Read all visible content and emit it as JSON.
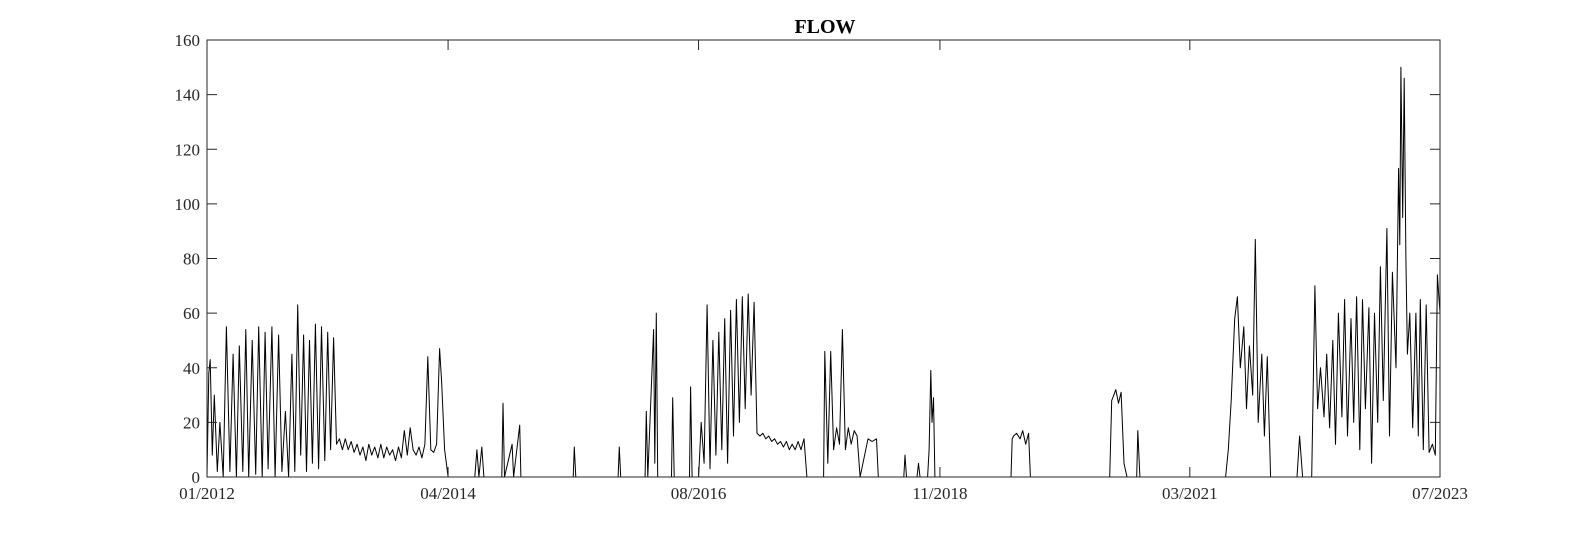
{
  "chart_data": {
    "type": "line",
    "title": "FLOW",
    "xlabel": "",
    "ylabel": "",
    "x_range": [
      "2012-01-01",
      "2023-07-01"
    ],
    "ylim": [
      0,
      160
    ],
    "yticks": [
      0,
      20,
      40,
      60,
      80,
      100,
      120,
      140,
      160
    ],
    "xticks": [
      {
        "date": "2012-01-01",
        "label": "01/2012"
      },
      {
        "date": "2014-04-01",
        "label": "04/2014"
      },
      {
        "date": "2016-08-01",
        "label": "08/2016"
      },
      {
        "date": "2018-11-01",
        "label": "11/2018"
      },
      {
        "date": "2021-03-01",
        "label": "03/2021"
      },
      {
        "date": "2023-07-01",
        "label": "07/2023"
      }
    ],
    "grid": false,
    "line_color": "#000000",
    "series": [
      {
        "values": [
          [
            "2012-01-01",
            0
          ],
          [
            "2012-01-07",
            38
          ],
          [
            "2012-01-12",
            43
          ],
          [
            "2012-01-19",
            8
          ],
          [
            "2012-01-26",
            30
          ],
          [
            "2012-02-05",
            2
          ],
          [
            "2012-02-14",
            20
          ],
          [
            "2012-02-25",
            0
          ],
          [
            "2012-03-07",
            55
          ],
          [
            "2012-03-19",
            2
          ],
          [
            "2012-03-30",
            45
          ],
          [
            "2012-04-10",
            0
          ],
          [
            "2012-04-20",
            48
          ],
          [
            "2012-05-02",
            2
          ],
          [
            "2012-05-12",
            54
          ],
          [
            "2012-05-22",
            0
          ],
          [
            "2012-06-03",
            50
          ],
          [
            "2012-06-15",
            1
          ],
          [
            "2012-06-25",
            55
          ],
          [
            "2012-07-07",
            0
          ],
          [
            "2012-07-17",
            53
          ],
          [
            "2012-07-27",
            3
          ],
          [
            "2012-08-09",
            55
          ],
          [
            "2012-08-20",
            0
          ],
          [
            "2012-09-01",
            52
          ],
          [
            "2012-09-12",
            2
          ],
          [
            "2012-09-24",
            24
          ],
          [
            "2012-10-05",
            0
          ],
          [
            "2012-10-16",
            45
          ],
          [
            "2012-10-26",
            2
          ],
          [
            "2012-11-05",
            63
          ],
          [
            "2012-11-15",
            8
          ],
          [
            "2012-11-25",
            52
          ],
          [
            "2012-12-05",
            2
          ],
          [
            "2012-12-15",
            50
          ],
          [
            "2012-12-25",
            5
          ],
          [
            "2013-01-04",
            56
          ],
          [
            "2013-01-15",
            3
          ],
          [
            "2013-01-25",
            55
          ],
          [
            "2013-02-05",
            6
          ],
          [
            "2013-02-15",
            53
          ],
          [
            "2013-02-25",
            10
          ],
          [
            "2013-03-07",
            51
          ],
          [
            "2013-03-17",
            12
          ],
          [
            "2013-03-27",
            14
          ],
          [
            "2013-04-06",
            10
          ],
          [
            "2013-04-16",
            14
          ],
          [
            "2013-04-26",
            10
          ],
          [
            "2013-05-06",
            13
          ],
          [
            "2013-05-16",
            9
          ],
          [
            "2013-05-26",
            12
          ],
          [
            "2013-06-05",
            8
          ],
          [
            "2013-06-15",
            11
          ],
          [
            "2013-06-25",
            6
          ],
          [
            "2013-07-05",
            12
          ],
          [
            "2013-07-15",
            8
          ],
          [
            "2013-07-25",
            11
          ],
          [
            "2013-08-05",
            7
          ],
          [
            "2013-08-15",
            12
          ],
          [
            "2013-08-25",
            7
          ],
          [
            "2013-09-04",
            11
          ],
          [
            "2013-09-14",
            8
          ],
          [
            "2013-09-24",
            10
          ],
          [
            "2013-10-04",
            6
          ],
          [
            "2013-10-14",
            11
          ],
          [
            "2013-10-24",
            7
          ],
          [
            "2013-11-03",
            17
          ],
          [
            "2013-11-13",
            8
          ],
          [
            "2013-11-23",
            18
          ],
          [
            "2013-12-03",
            10
          ],
          [
            "2013-12-13",
            8
          ],
          [
            "2013-12-23",
            11
          ],
          [
            "2014-01-02",
            7
          ],
          [
            "2014-01-12",
            12
          ],
          [
            "2014-01-22",
            44
          ],
          [
            "2014-02-01",
            10
          ],
          [
            "2014-02-11",
            9
          ],
          [
            "2014-02-21",
            12
          ],
          [
            "2014-03-03",
            47
          ],
          [
            "2014-03-10",
            35
          ],
          [
            "2014-03-20",
            10
          ],
          [
            "2014-04-01",
            0
          ],
          [
            "2014-07-01",
            0
          ],
          [
            "2014-07-08",
            10
          ],
          [
            "2014-07-15",
            0
          ],
          [
            "2014-07-25",
            11
          ],
          [
            "2014-08-01",
            0
          ],
          [
            "2014-10-01",
            0
          ],
          [
            "2014-10-05",
            27
          ],
          [
            "2014-10-10",
            0
          ],
          [
            "2014-11-05",
            12
          ],
          [
            "2014-11-10",
            0
          ],
          [
            "2014-12-01",
            19
          ],
          [
            "2014-12-05",
            0
          ],
          [
            "2015-06-01",
            0
          ],
          [
            "2015-06-05",
            11
          ],
          [
            "2015-06-10",
            0
          ],
          [
            "2015-11-01",
            0
          ],
          [
            "2015-11-05",
            11
          ],
          [
            "2015-11-10",
            0
          ],
          [
            "2016-02-01",
            0
          ],
          [
            "2016-02-05",
            24
          ],
          [
            "2016-02-10",
            0
          ],
          [
            "2016-03-01",
            54
          ],
          [
            "2016-03-05",
            5
          ],
          [
            "2016-03-10",
            60
          ],
          [
            "2016-03-15",
            0
          ],
          [
            "2016-05-01",
            0
          ],
          [
            "2016-05-05",
            29
          ],
          [
            "2016-05-10",
            0
          ],
          [
            "2016-07-01",
            0
          ],
          [
            "2016-07-05",
            33
          ],
          [
            "2016-07-10",
            0
          ],
          [
            "2016-08-01",
            0
          ],
          [
            "2016-08-10",
            20
          ],
          [
            "2016-08-20",
            5
          ],
          [
            "2016-08-30",
            63
          ],
          [
            "2016-09-09",
            3
          ],
          [
            "2016-09-19",
            50
          ],
          [
            "2016-09-29",
            8
          ],
          [
            "2016-10-09",
            53
          ],
          [
            "2016-10-19",
            10
          ],
          [
            "2016-10-29",
            58
          ],
          [
            "2016-11-08",
            5
          ],
          [
            "2016-11-18",
            61
          ],
          [
            "2016-11-28",
            15
          ],
          [
            "2016-12-08",
            65
          ],
          [
            "2016-12-18",
            20
          ],
          [
            "2016-12-28",
            66
          ],
          [
            "2017-01-07",
            25
          ],
          [
            "2017-01-17",
            67
          ],
          [
            "2017-01-27",
            30
          ],
          [
            "2017-02-06",
            64
          ],
          [
            "2017-02-16",
            16
          ],
          [
            "2017-02-26",
            15
          ],
          [
            "2017-03-08",
            16
          ],
          [
            "2017-03-18",
            14
          ],
          [
            "2017-03-28",
            15
          ],
          [
            "2017-04-07",
            13
          ],
          [
            "2017-04-17",
            14
          ],
          [
            "2017-04-27",
            12
          ],
          [
            "2017-05-07",
            13
          ],
          [
            "2017-05-17",
            11
          ],
          [
            "2017-05-27",
            13
          ],
          [
            "2017-06-06",
            10
          ],
          [
            "2017-06-16",
            12
          ],
          [
            "2017-06-26",
            10
          ],
          [
            "2017-07-06",
            13
          ],
          [
            "2017-07-16",
            10
          ],
          [
            "2017-07-26",
            14
          ],
          [
            "2017-08-05",
            0
          ],
          [
            "2017-10-01",
            0
          ],
          [
            "2017-10-05",
            46
          ],
          [
            "2017-10-15",
            5
          ],
          [
            "2017-10-25",
            46
          ],
          [
            "2017-11-04",
            10
          ],
          [
            "2017-11-14",
            18
          ],
          [
            "2017-11-24",
            12
          ],
          [
            "2017-12-04",
            54
          ],
          [
            "2017-12-14",
            10
          ],
          [
            "2017-12-24",
            18
          ],
          [
            "2018-01-03",
            12
          ],
          [
            "2018-01-13",
            17
          ],
          [
            "2018-01-23",
            15
          ],
          [
            "2018-02-02",
            0
          ],
          [
            "2018-03-01",
            14
          ],
          [
            "2018-03-15",
            13
          ],
          [
            "2018-03-30",
            14
          ],
          [
            "2018-04-05",
            0
          ],
          [
            "2018-07-01",
            0
          ],
          [
            "2018-07-05",
            8
          ],
          [
            "2018-07-10",
            0
          ],
          [
            "2018-08-15",
            0
          ],
          [
            "2018-08-20",
            5
          ],
          [
            "2018-08-25",
            0
          ],
          [
            "2018-09-20",
            0
          ],
          [
            "2018-09-25",
            10
          ],
          [
            "2018-10-01",
            39
          ],
          [
            "2018-10-05",
            20
          ],
          [
            "2018-10-10",
            29
          ],
          [
            "2018-10-15",
            0
          ],
          [
            "2019-07-01",
            0
          ],
          [
            "2019-07-05",
            14
          ],
          [
            "2019-07-10",
            15
          ],
          [
            "2019-07-20",
            16
          ],
          [
            "2019-08-01",
            14
          ],
          [
            "2019-08-10",
            17
          ],
          [
            "2019-08-20",
            12
          ],
          [
            "2019-08-30",
            16
          ],
          [
            "2019-09-05",
            0
          ],
          [
            "2020-06-01",
            0
          ],
          [
            "2020-06-08",
            28
          ],
          [
            "2020-06-15",
            30
          ],
          [
            "2020-06-22",
            32
          ],
          [
            "2020-07-01",
            27
          ],
          [
            "2020-07-10",
            31
          ],
          [
            "2020-07-20",
            5
          ],
          [
            "2020-07-30",
            0
          ],
          [
            "2020-09-01",
            0
          ],
          [
            "2020-09-05",
            17
          ],
          [
            "2020-09-12",
            0
          ],
          [
            "2021-07-01",
            0
          ],
          [
            "2021-07-10",
            10
          ],
          [
            "2021-07-20",
            28
          ],
          [
            "2021-08-01",
            58
          ],
          [
            "2021-08-10",
            66
          ],
          [
            "2021-08-20",
            40
          ],
          [
            "2021-09-01",
            55
          ],
          [
            "2021-09-10",
            25
          ],
          [
            "2021-09-20",
            48
          ],
          [
            "2021-10-01",
            30
          ],
          [
            "2021-10-10",
            87
          ],
          [
            "2021-10-20",
            20
          ],
          [
            "2021-11-01",
            45
          ],
          [
            "2021-11-10",
            15
          ],
          [
            "2021-11-20",
            44
          ],
          [
            "2021-12-01",
            0
          ],
          [
            "2022-03-01",
            0
          ],
          [
            "2022-03-10",
            15
          ],
          [
            "2022-03-20",
            0
          ],
          [
            "2022-04-20",
            0
          ],
          [
            "2022-05-01",
            70
          ],
          [
            "2022-05-10",
            25
          ],
          [
            "2022-05-20",
            40
          ],
          [
            "2022-06-01",
            22
          ],
          [
            "2022-06-10",
            45
          ],
          [
            "2022-06-20",
            18
          ],
          [
            "2022-07-01",
            50
          ],
          [
            "2022-07-10",
            12
          ],
          [
            "2022-07-20",
            60
          ],
          [
            "2022-08-01",
            22
          ],
          [
            "2022-08-10",
            65
          ],
          [
            "2022-08-20",
            15
          ],
          [
            "2022-09-01",
            58
          ],
          [
            "2022-09-10",
            20
          ],
          [
            "2022-09-20",
            66
          ],
          [
            "2022-10-01",
            10
          ],
          [
            "2022-10-10",
            65
          ],
          [
            "2022-10-20",
            25
          ],
          [
            "2022-11-01",
            62
          ],
          [
            "2022-11-10",
            5
          ],
          [
            "2022-11-20",
            60
          ],
          [
            "2022-12-01",
            20
          ],
          [
            "2022-12-10",
            77
          ],
          [
            "2022-12-20",
            28
          ],
          [
            "2023-01-01",
            91
          ],
          [
            "2023-01-10",
            15
          ],
          [
            "2023-01-20",
            75
          ],
          [
            "2023-02-01",
            40
          ],
          [
            "2023-02-10",
            113
          ],
          [
            "2023-02-14",
            85
          ],
          [
            "2023-02-18",
            150
          ],
          [
            "2023-02-24",
            95
          ],
          [
            "2023-03-01",
            146
          ],
          [
            "2023-03-07",
            80
          ],
          [
            "2023-03-12",
            45
          ],
          [
            "2023-03-20",
            60
          ],
          [
            "2023-03-30",
            18
          ],
          [
            "2023-04-10",
            60
          ],
          [
            "2023-04-18",
            15
          ],
          [
            "2023-04-25",
            65
          ],
          [
            "2023-05-05",
            10
          ],
          [
            "2023-05-15",
            63
          ],
          [
            "2023-05-25",
            9
          ],
          [
            "2023-06-05",
            12
          ],
          [
            "2023-06-15",
            8
          ],
          [
            "2023-06-22",
            74
          ],
          [
            "2023-06-26",
            68
          ],
          [
            "2023-07-01",
            60
          ]
        ]
      }
    ]
  }
}
